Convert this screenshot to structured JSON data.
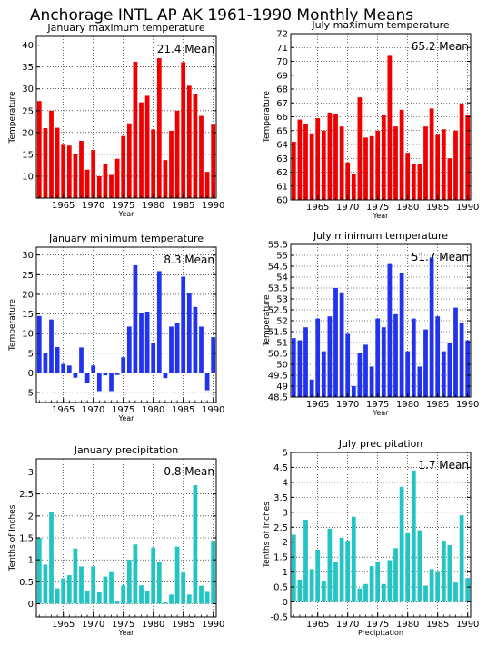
{
  "title": "Anchorage INTL AP AK   1961-1990 Monthly Means",
  "charts": [
    {
      "type": "bar",
      "title": "January maximum temperature",
      "mean_label": "21.4 Mean",
      "xlabel": "Year",
      "ylabel": "Temperature",
      "color": "#ee0000",
      "x": [
        1961,
        1962,
        1963,
        1964,
        1965,
        1966,
        1967,
        1968,
        1969,
        1970,
        1971,
        1972,
        1973,
        1974,
        1975,
        1976,
        1977,
        1978,
        1979,
        1980,
        1981,
        1982,
        1983,
        1984,
        1985,
        1986,
        1987,
        1988,
        1989,
        1990
      ],
      "values": [
        27.2,
        21.0,
        25.0,
        21.1,
        17.2,
        17.0,
        15.0,
        18.1,
        11.5,
        16.0,
        10.0,
        12.8,
        10.3,
        14.0,
        19.2,
        22.1,
        36.2,
        26.9,
        28.4,
        20.7,
        37.0,
        13.7,
        20.4,
        25.0,
        36.1,
        30.7,
        28.9,
        23.8,
        11.0,
        21.8
      ],
      "ylim": [
        5,
        42
      ],
      "yticks": [
        10,
        15,
        20,
        25,
        30,
        35,
        40
      ],
      "xticks": [
        1965,
        1970,
        1975,
        1980,
        1985,
        1990
      ],
      "grid": true
    },
    {
      "type": "bar",
      "title": "July maximum temperature",
      "mean_label": "65.2 Mean",
      "xlabel": "Year",
      "ylabel": "Temperature",
      "color": "#ee0000",
      "x": [
        1961,
        1962,
        1963,
        1964,
        1965,
        1966,
        1967,
        1968,
        1969,
        1970,
        1971,
        1972,
        1973,
        1974,
        1975,
        1976,
        1977,
        1978,
        1979,
        1980,
        1981,
        1982,
        1983,
        1984,
        1985,
        1986,
        1987,
        1988,
        1989,
        1990
      ],
      "values": [
        64.2,
        65.8,
        65.5,
        64.8,
        65.9,
        65.0,
        66.3,
        66.2,
        65.3,
        62.7,
        61.9,
        67.4,
        64.5,
        64.6,
        65.0,
        66.1,
        70.4,
        65.3,
        66.5,
        63.4,
        62.6,
        62.6,
        65.3,
        66.6,
        64.7,
        65.1,
        63.0,
        65.0,
        66.9,
        66.1
      ],
      "ylim": [
        60,
        72
      ],
      "yticks": [
        60,
        61,
        62,
        63,
        64,
        65,
        66,
        67,
        68,
        69,
        70,
        71,
        72
      ],
      "xticks": [
        1965,
        1970,
        1975,
        1980,
        1985,
        1990
      ],
      "grid": true
    },
    {
      "type": "bar",
      "title": "January minimum temperature",
      "mean_label": "8.3 Mean",
      "xlabel": "Year",
      "ylabel": "Temperature",
      "color": "#2233ee",
      "x": [
        1961,
        1962,
        1963,
        1964,
        1965,
        1966,
        1967,
        1968,
        1969,
        1970,
        1971,
        1972,
        1973,
        1974,
        1975,
        1976,
        1977,
        1978,
        1979,
        1980,
        1981,
        1982,
        1983,
        1984,
        1985,
        1986,
        1987,
        1988,
        1989,
        1990
      ],
      "values": [
        14.5,
        5.1,
        13.6,
        6.6,
        2.3,
        1.9,
        -1.2,
        6.5,
        -2.5,
        1.9,
        -4.6,
        -0.6,
        -4.6,
        -0.5,
        4.0,
        11.8,
        27.4,
        15.3,
        15.6,
        7.6,
        25.9,
        -1.3,
        11.8,
        12.6,
        24.5,
        20.3,
        16.8,
        11.8,
        -4.4,
        9.1
      ],
      "ylim": [
        -7.5,
        32
      ],
      "yticks": [
        -5,
        0,
        5,
        10,
        15,
        20,
        25,
        30
      ],
      "xticks": [
        1965,
        1970,
        1975,
        1980,
        1985,
        1990
      ],
      "grid": true
    },
    {
      "type": "bar",
      "title": "July minimum temperature",
      "mean_label": "51.7 Mean",
      "xlabel": "Year",
      "ylabel": "Temperature",
      "color": "#2233ee",
      "x": [
        1961,
        1962,
        1963,
        1964,
        1965,
        1966,
        1967,
        1968,
        1969,
        1970,
        1971,
        1972,
        1973,
        1974,
        1975,
        1976,
        1977,
        1978,
        1979,
        1980,
        1981,
        1982,
        1983,
        1984,
        1985,
        1986,
        1987,
        1988,
        1989,
        1990
      ],
      "values": [
        51.2,
        51.1,
        51.7,
        49.3,
        52.1,
        50.6,
        52.2,
        53.5,
        53.3,
        51.4,
        49.0,
        50.5,
        50.9,
        49.9,
        52.1,
        51.7,
        54.6,
        52.3,
        54.2,
        50.6,
        52.1,
        49.9,
        51.6,
        54.9,
        52.2,
        50.6,
        51.0,
        52.6,
        51.9,
        51.1
      ],
      "ylim": [
        48.5,
        55.5
      ],
      "yticks": [
        48.5,
        49,
        49.5,
        50,
        50.5,
        51,
        51.5,
        52,
        52.5,
        53,
        53.5,
        54,
        54.5,
        55,
        55.5
      ],
      "xticks": [
        1965,
        1970,
        1975,
        1980,
        1985,
        1990
      ],
      "grid": true
    },
    {
      "type": "bar",
      "title": "January precipitation",
      "mean_label": "0.8 Mean",
      "xlabel": "Year",
      "ylabel": "Tenths of Inches",
      "color": "#22c4c4",
      "x": [
        1961,
        1962,
        1963,
        1964,
        1965,
        1966,
        1967,
        1968,
        1969,
        1970,
        1971,
        1972,
        1973,
        1974,
        1975,
        1976,
        1977,
        1978,
        1979,
        1980,
        1981,
        1982,
        1983,
        1984,
        1985,
        1986,
        1987,
        1988,
        1989,
        1990
      ],
      "values": [
        1.5,
        0.89,
        2.1,
        0.35,
        0.58,
        0.65,
        1.26,
        0.85,
        0.28,
        0.85,
        0.26,
        0.62,
        0.72,
        0.05,
        0.42,
        1.0,
        1.35,
        0.42,
        0.29,
        1.28,
        0.96,
        0.03,
        0.21,
        1.3,
        0.71,
        0.21,
        2.7,
        0.41,
        0.27,
        1.43
      ],
      "ylim": [
        -0.3,
        3.3
      ],
      "yticks": [
        0,
        0.5,
        1,
        1.5,
        2,
        2.5,
        3
      ],
      "xticks": [
        1965,
        1970,
        1975,
        1980,
        1985,
        1990
      ],
      "grid": true
    },
    {
      "type": "bar",
      "title": "July precipitation",
      "mean_label": "1.7 Mean",
      "xlabel": "Precipitation",
      "ylabel": "Tenths of Inches",
      "color": "#22c4c4",
      "x": [
        1961,
        1962,
        1963,
        1964,
        1965,
        1966,
        1967,
        1968,
        1969,
        1970,
        1971,
        1972,
        1973,
        1974,
        1975,
        1976,
        1977,
        1978,
        1979,
        1980,
        1981,
        1982,
        1983,
        1984,
        1985,
        1986,
        1987,
        1988,
        1989,
        1990
      ],
      "values": [
        2.25,
        0.75,
        2.75,
        1.1,
        1.75,
        0.7,
        2.45,
        1.35,
        2.15,
        2.05,
        2.85,
        0.45,
        0.6,
        1.2,
        1.35,
        0.6,
        1.4,
        1.8,
        3.85,
        2.3,
        4.4,
        2.4,
        0.55,
        1.1,
        1.0,
        2.05,
        1.9,
        0.65,
        2.9,
        0.8
      ],
      "ylim": [
        -0.5,
        5
      ],
      "yticks": [
        -0.5,
        0,
        0.5,
        1,
        1.5,
        2,
        2.5,
        3,
        3.5,
        4,
        4.5,
        5
      ],
      "xticks": [
        1965,
        1970,
        1975,
        1980,
        1985,
        1990
      ],
      "grid": true
    }
  ]
}
